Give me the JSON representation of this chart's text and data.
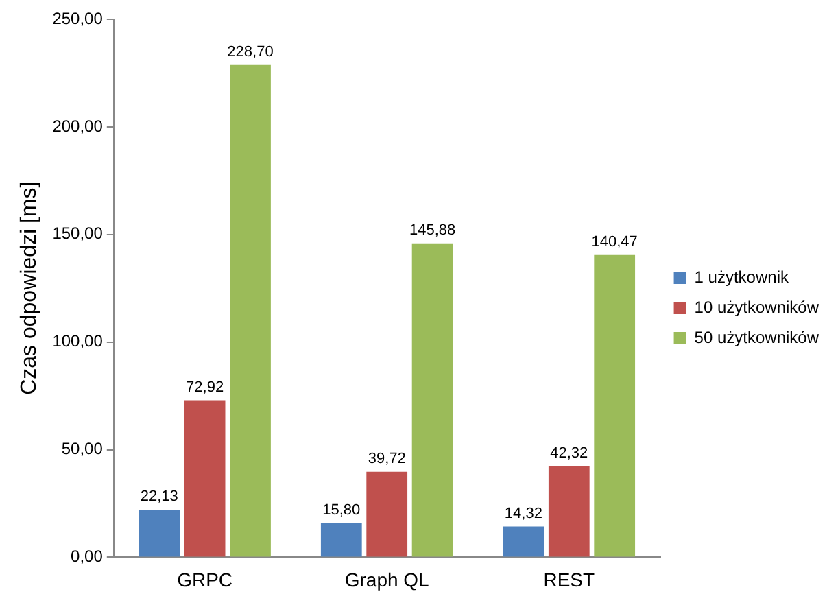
{
  "chart_data": {
    "type": "bar",
    "ylabel": "Czas odpowiedzi [ms]",
    "categories": [
      "GRPC",
      "Graph QL",
      "REST"
    ],
    "series": [
      {
        "name": "1 użytkownik",
        "color": "#4f81bd",
        "values": [
          22.13,
          15.8,
          14.32
        ],
        "value_labels": [
          "22,13",
          "15,80",
          "14,32"
        ]
      },
      {
        "name": "10 użytkowników",
        "color": "#c0504d",
        "values": [
          72.92,
          39.72,
          42.32
        ],
        "value_labels": [
          "72,92",
          "39,72",
          "42,32"
        ]
      },
      {
        "name": "50 użytkowników",
        "color": "#9bbb59",
        "values": [
          228.7,
          145.88,
          140.47
        ],
        "value_labels": [
          "228,70",
          "145,88",
          "140,47"
        ]
      }
    ],
    "ylim": [
      0,
      250
    ],
    "yticks": [
      {
        "value": 0,
        "label": "0,00"
      },
      {
        "value": 50,
        "label": "50,00"
      },
      {
        "value": 100,
        "label": "100,00"
      },
      {
        "value": 150,
        "label": "150,00"
      },
      {
        "value": 200,
        "label": "200,00"
      },
      {
        "value": 250,
        "label": "250,00"
      }
    ],
    "grid": false,
    "legend": "right"
  }
}
